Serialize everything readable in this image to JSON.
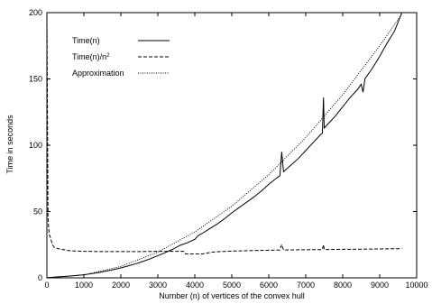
{
  "chart_data": {
    "type": "line",
    "title": "",
    "xlabel": "Number (n) of vertices of the convex hull",
    "ylabel": "Time in seconds",
    "xlim": [
      0,
      10000
    ],
    "ylim": [
      0,
      200
    ],
    "xticks": [
      0,
      1000,
      2000,
      3000,
      4000,
      5000,
      6000,
      7000,
      8000,
      9000,
      10000
    ],
    "yticks": [
      0,
      50,
      100,
      150,
      200
    ],
    "grid": false,
    "legend_position": "top-left",
    "series": [
      {
        "name": "Time(n)",
        "style": "solid",
        "x": [
          0,
          200,
          400,
          600,
          800,
          1000,
          1200,
          1400,
          1600,
          1800,
          2000,
          2200,
          2400,
          2600,
          2800,
          3000,
          3200,
          3400,
          3600,
          3700,
          3800,
          4000,
          4100,
          4200,
          4400,
          4600,
          4800,
          5000,
          5200,
          5400,
          5600,
          5800,
          6000,
          6200,
          6300,
          6350,
          6400,
          6600,
          6800,
          7000,
          7200,
          7400,
          7450,
          7480,
          7500,
          7600,
          7800,
          8000,
          8200,
          8400,
          8500,
          8550,
          8600,
          8800,
          9000,
          9200,
          9400,
          9600
        ],
        "y": [
          0.2,
          0.5,
          0.9,
          1.3,
          1.8,
          2.3,
          3.1,
          4.0,
          5.1,
          6.2,
          7.5,
          9.0,
          10.6,
          12.4,
          14.4,
          16.7,
          19.0,
          21.5,
          24.5,
          25.5,
          26.5,
          29.0,
          32.0,
          33.5,
          37.0,
          40.5,
          44.5,
          49.0,
          53.0,
          57.0,
          61.0,
          65.5,
          70.5,
          75.0,
          77.0,
          95.0,
          80.0,
          85.0,
          90.0,
          96.0,
          102.0,
          108.0,
          109.0,
          136.0,
          113.0,
          116.0,
          122.0,
          129.0,
          136.0,
          142.0,
          146.0,
          140.0,
          150.0,
          158.0,
          167.0,
          177.0,
          186.0,
          200.0
        ]
      },
      {
        "name": "Time(n)/n^2",
        "style": "dashed",
        "x": [
          0,
          30,
          60,
          100,
          150,
          200,
          300,
          400,
          500,
          600,
          800,
          1000,
          1500,
          2000,
          2500,
          3000,
          3500,
          3700,
          3750,
          4000,
          4200,
          4500,
          5000,
          5500,
          6000,
          6300,
          6350,
          6400,
          7000,
          7450,
          7480,
          7500,
          8000,
          8500,
          9000,
          9600
        ],
        "y": [
          200,
          45,
          33,
          30,
          25,
          23,
          22,
          21.5,
          21,
          20.5,
          20.2,
          20,
          19.8,
          19.8,
          19.8,
          20,
          20,
          20,
          18,
          18,
          18,
          19.5,
          20.2,
          20.5,
          20.8,
          21,
          25,
          21,
          21.2,
          21.3,
          25,
          21.3,
          21.5,
          21.6,
          21.8,
          22
        ]
      },
      {
        "name": "Approximation",
        "style": "dotted",
        "x": [
          0,
          1000,
          2000,
          3000,
          4000,
          5000,
          6000,
          7000,
          8000,
          9000,
          9600
        ],
        "y": [
          0,
          2.2,
          8.6,
          19.4,
          34.6,
          54.0,
          77.8,
          105.8,
          138.2,
          175.0,
          199.0
        ]
      }
    ]
  }
}
